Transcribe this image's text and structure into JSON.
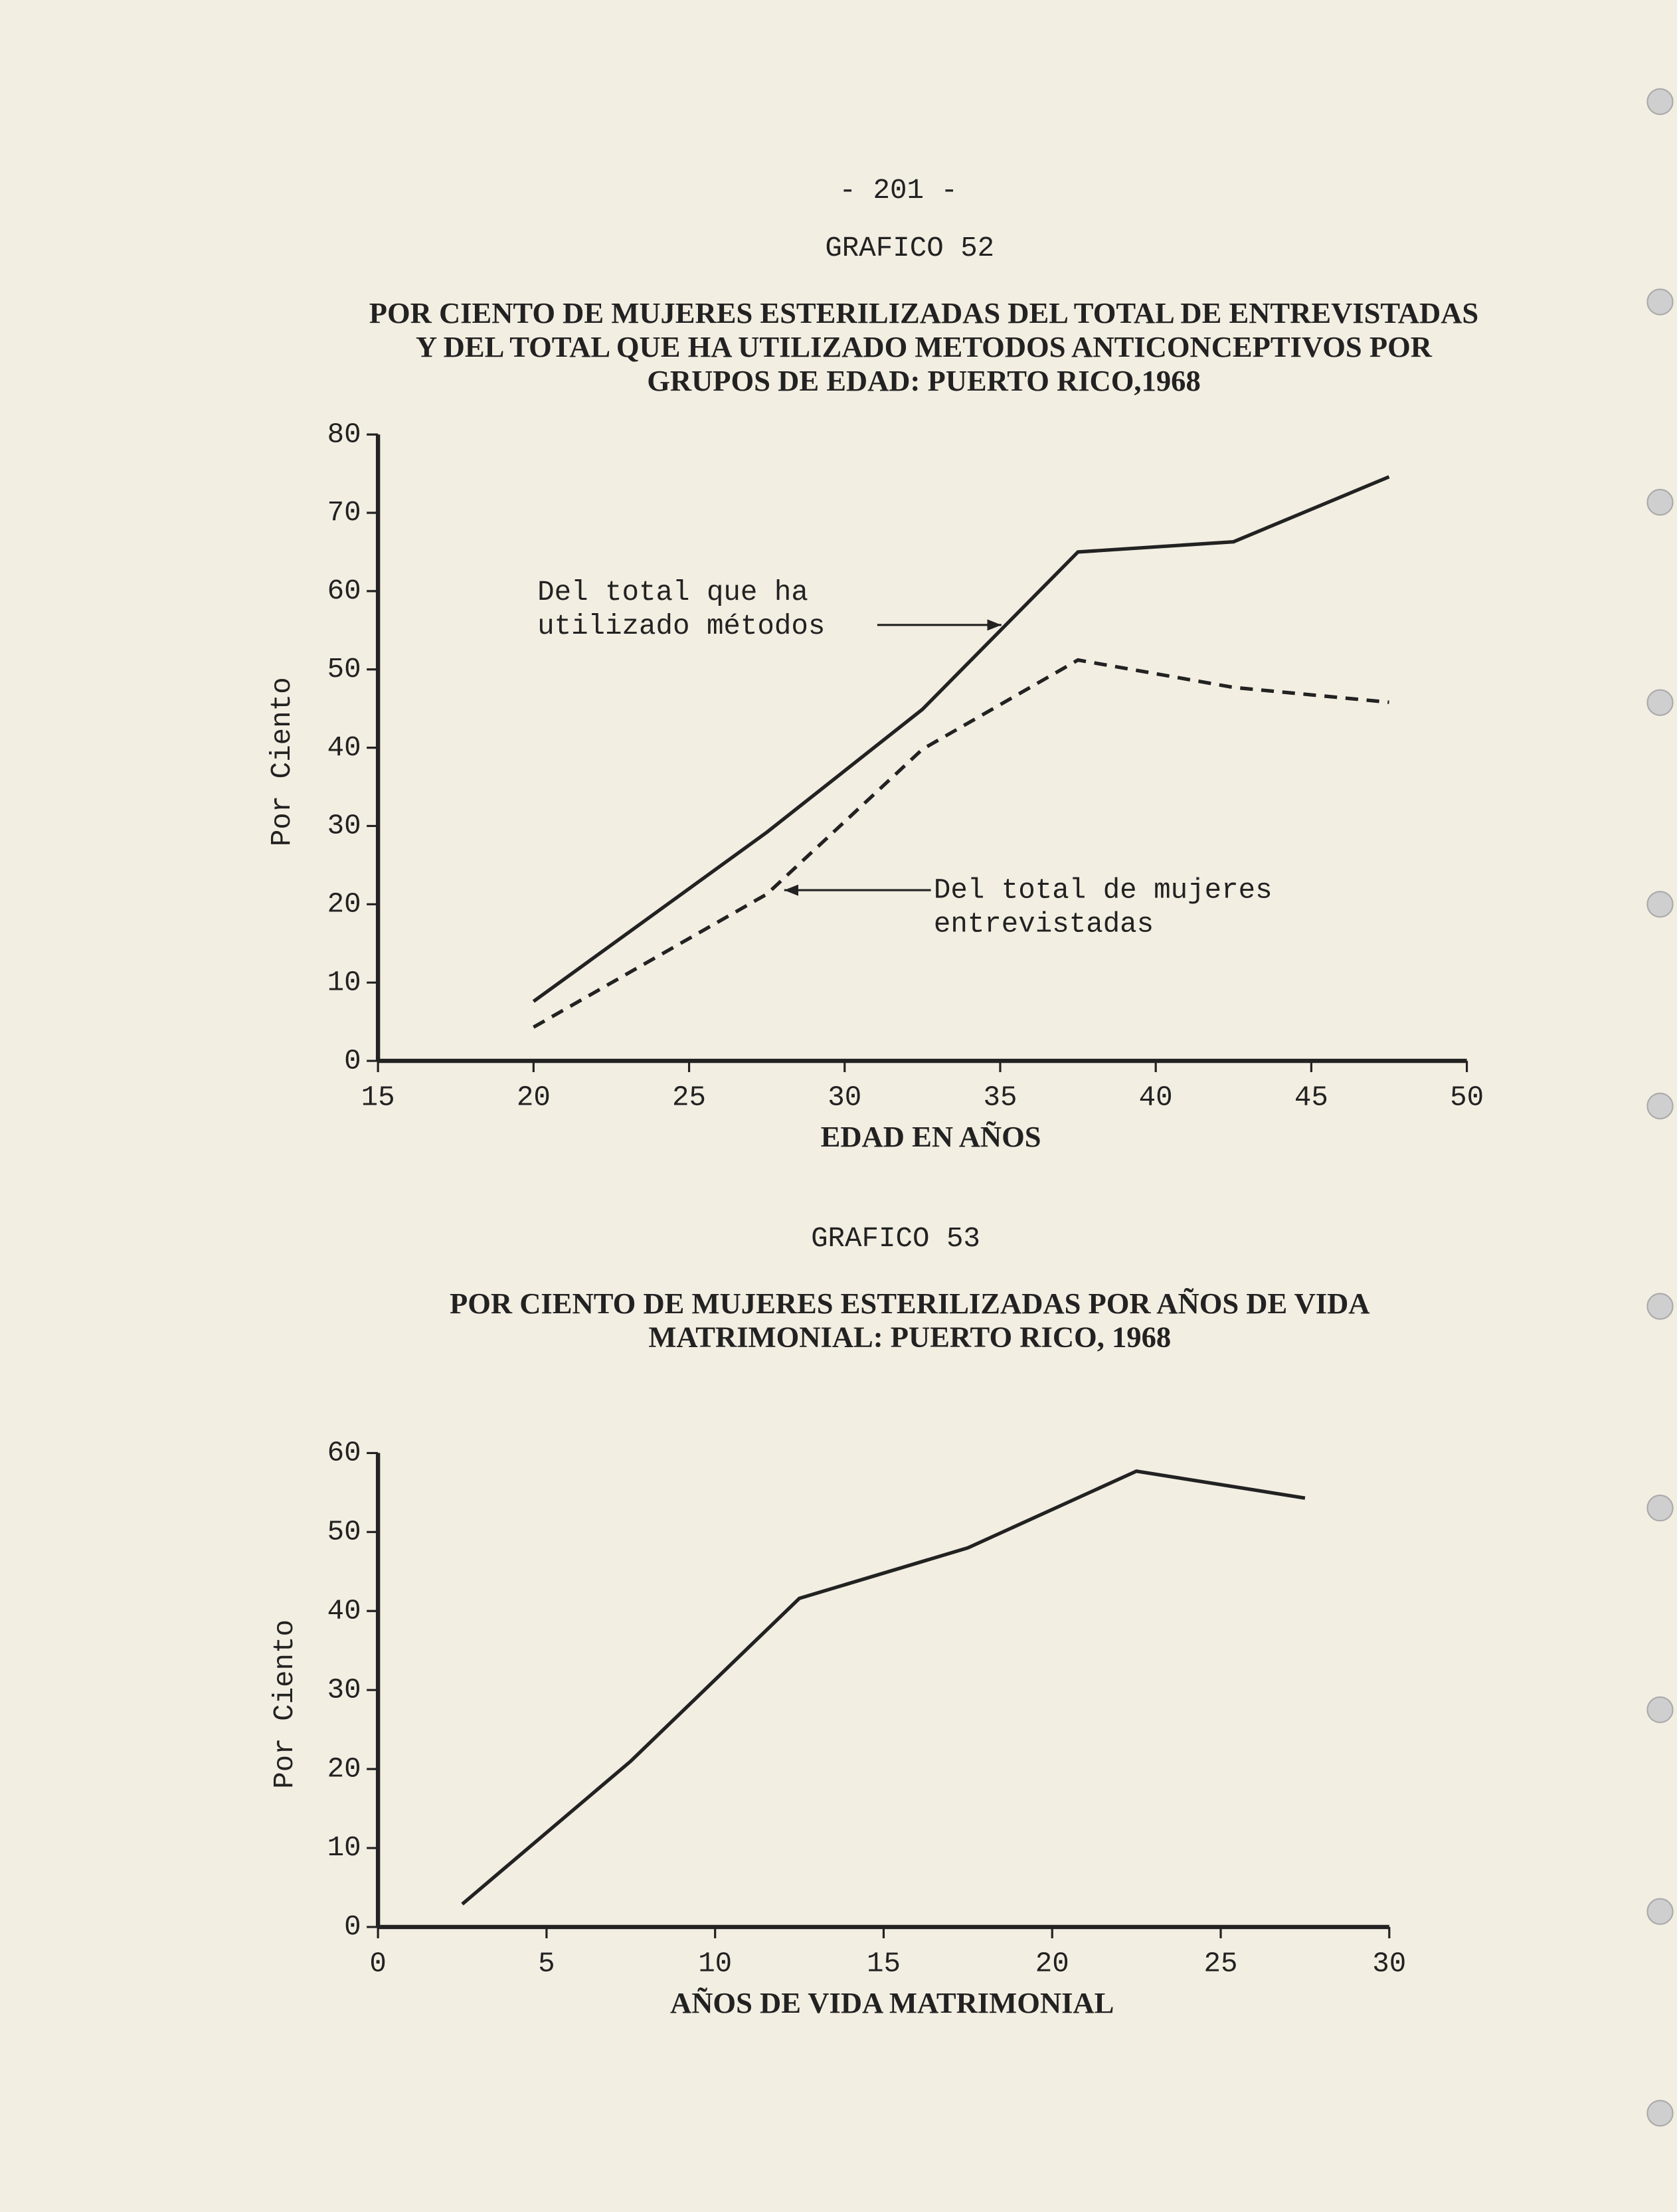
{
  "page_number": "- 201 -",
  "chart_data": [
    {
      "type": "line",
      "label": "GRAFICO 52",
      "title": [
        "POR CIENTO DE MUJERES ESTERILIZADAS DEL TOTAL DE ENTREVISTADAS",
        "Y DEL TOTAL QUE HA UTILIZADO METODOS ANTICONCEPTIVOS POR",
        "GRUPOS DE EDAD: PUERTO RICO,1968"
      ],
      "xlabel": "EDAD EN AÑOS",
      "ylabel": "Por Ciento",
      "x": [
        20,
        27.5,
        32.5,
        37.5,
        42.5,
        47.5
      ],
      "series": [
        {
          "name": [
            "Del total que ha",
            "utilizado métodos"
          ],
          "color": "#222222",
          "style": "solid",
          "values": [
            7.6,
            29.2,
            44.9,
            65,
            66.3,
            74.6
          ]
        },
        {
          "name": [
            "Del total de mujeres",
            "entrevistadas"
          ],
          "color": "#222222",
          "style": "dashed",
          "values": [
            4.3,
            21.3,
            39.8,
            51.2,
            47.7,
            45.8
          ]
        }
      ],
      "xlim": [
        15,
        50
      ],
      "xticks": [
        15,
        20,
        25,
        30,
        35,
        40,
        45,
        50
      ],
      "ylim": [
        0,
        80
      ],
      "yticks": [
        0,
        10,
        20,
        30,
        40,
        50,
        60,
        70,
        80
      ],
      "grid": false
    },
    {
      "type": "line",
      "label": "GRAFICO 53",
      "title": [
        "POR CIENTO DE MUJERES ESTERILIZADAS POR AÑOS DE VIDA",
        "MATRIMONIAL: PUERTO RICO, 1968"
      ],
      "xlabel": "AÑOS DE VIDA MATRIMONIAL",
      "ylabel": "Por Ciento",
      "x": [
        2.5,
        7.5,
        12.5,
        17.5,
        22.5,
        27.5
      ],
      "series": [
        {
          "color": "#222222",
          "style": "solid",
          "values": [
            2.9,
            21,
            41.6,
            48,
            57.7,
            54.3
          ]
        }
      ],
      "xlim": [
        0,
        30
      ],
      "xticks": [
        0,
        5,
        10,
        15,
        20,
        25,
        30
      ],
      "ylim": [
        0,
        60
      ],
      "yticks": [
        0,
        10,
        20,
        30,
        40,
        50,
        60
      ],
      "grid": false
    }
  ]
}
